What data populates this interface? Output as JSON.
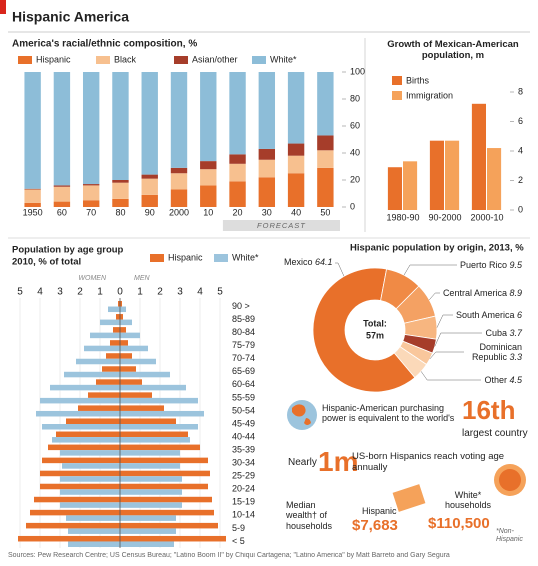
{
  "header": {
    "title": "Hispanic America"
  },
  "chart_data": [
    {
      "type": "stacked-bar",
      "title": "America's racial/ethnic composition, %",
      "categories": [
        "1950",
        "60",
        "70",
        "80",
        "90",
        "2000",
        "10",
        "20",
        "30",
        "40",
        "50"
      ],
      "series": [
        {
          "name": "Hispanic",
          "color": "#e8702a",
          "values": [
            3,
            4,
            5,
            6,
            9,
            13,
            16,
            19,
            22,
            25,
            29
          ]
        },
        {
          "name": "Black",
          "color": "#f7c08f",
          "values": [
            10,
            11,
            11,
            12,
            12,
            12,
            12,
            13,
            13,
            13,
            13
          ]
        },
        {
          "name": "Asian/other",
          "color": "#a63d2a",
          "values": [
            0.5,
            1,
            1,
            2,
            3,
            4,
            6,
            7,
            8,
            9,
            11
          ]
        },
        {
          "name": "White*",
          "color": "#8dbdd8",
          "values": [
            86.5,
            84,
            83,
            80,
            76,
            71,
            66,
            61,
            57,
            53,
            47
          ]
        }
      ],
      "ylim": [
        0,
        100
      ],
      "yticks": [
        0,
        20,
        40,
        60,
        80,
        100
      ],
      "annotation": "FORECAST"
    },
    {
      "type": "bar",
      "title": "Growth of Mexican-American population, m",
      "categories": [
        "1980-90",
        "90-2000",
        "2000-10"
      ],
      "series": [
        {
          "name": "Births",
          "color": "#e8702a",
          "values": [
            2.9,
            4.7,
            7.2
          ]
        },
        {
          "name": "Immigration",
          "color": "#f5a25a",
          "values": [
            3.3,
            4.7,
            4.2
          ]
        }
      ],
      "ylim": [
        0,
        8
      ],
      "yticks": [
        0,
        2,
        4,
        6,
        8
      ]
    },
    {
      "type": "pyramid",
      "title": "Population by age group",
      "subtitle": "2010, % of total",
      "categories": [
        "90 >",
        "85-89",
        "80-84",
        "75-79",
        "70-74",
        "65-69",
        "60-64",
        "55-59",
        "50-54",
        "45-49",
        "40-44",
        "35-39",
        "30-34",
        "25-29",
        "20-24",
        "15-19",
        "10-14",
        "5-9",
        "< 5"
      ],
      "left_label": "WOMEN",
      "right_label": "MEN",
      "series": [
        {
          "name": "Hispanic",
          "color": "#e8702a",
          "women": [
            0.1,
            0.2,
            0.35,
            0.5,
            0.7,
            0.9,
            1.2,
            1.6,
            2.1,
            2.7,
            3.2,
            3.6,
            3.9,
            4.0,
            4.0,
            4.3,
            4.5,
            4.7,
            5.1
          ],
          "men": [
            0.1,
            0.15,
            0.3,
            0.4,
            0.6,
            0.8,
            1.1,
            1.6,
            2.2,
            2.8,
            3.4,
            4.0,
            4.4,
            4.5,
            4.4,
            4.6,
            4.7,
            4.9,
            5.3
          ]
        },
        {
          "name": "White*",
          "color": "#9cc4dd",
          "women": [
            0.6,
            1.0,
            1.5,
            1.8,
            2.2,
            2.8,
            3.5,
            4.0,
            4.2,
            3.9,
            3.4,
            3.0,
            2.9,
            3.0,
            3.0,
            3.0,
            2.7,
            2.6,
            2.6
          ],
          "men": [
            0.3,
            0.6,
            1.0,
            1.4,
            1.8,
            2.5,
            3.3,
            3.9,
            4.2,
            3.9,
            3.5,
            3.0,
            3.0,
            3.1,
            3.1,
            3.1,
            2.8,
            2.8,
            2.7
          ]
        }
      ],
      "xlim": [
        -5,
        5
      ],
      "xticks": [
        {
          "value": -5,
          "label": "5"
        },
        {
          "value": -4,
          "label": "4"
        },
        {
          "value": -3,
          "label": "3"
        },
        {
          "value": -2,
          "label": "2"
        },
        {
          "value": -1,
          "label": "1"
        },
        0,
        1,
        2,
        3,
        4,
        5
      ]
    },
    {
      "type": "donut",
      "title": "Hispanic population by origin, 2013, %",
      "categories": [
        "Mexico",
        "Puerto Rico",
        "Central America",
        "South America",
        "Cuba",
        "Dominican Republic",
        "Other"
      ],
      "values": [
        64.1,
        9.5,
        8.9,
        6.0,
        3.7,
        3.3,
        4.5
      ],
      "colors": [
        "#e8702a",
        "#f08a45",
        "#f4a163",
        "#f7b680",
        "#a63d2a",
        "#f9c79c",
        "#fbd9b9"
      ],
      "center_label": "Total:",
      "center_value": "57m"
    }
  ],
  "facts": {
    "purchasing": {
      "text": "Hispanic-American purchasing power is equivalent to the world's",
      "rank": "16th",
      "suffix": "largest country"
    },
    "voters": {
      "prefix": "Nearly",
      "number": "1m",
      "text": "US-born Hispanics reach voting age annually"
    },
    "wealth": {
      "label": "Median wealth† of households",
      "hispanic_label": "Hispanic",
      "hispanic_value": "$7,683",
      "white_label": "White* households",
      "white_value": "$110,500",
      "note": "*Non-Hispanic"
    }
  },
  "source": "Sources: Pew Research Centre; US Census Bureau; \"Latino Boom II\" by Chiqui Cartagena; \"Latino America\" by Matt Barreto and Gary Segura"
}
